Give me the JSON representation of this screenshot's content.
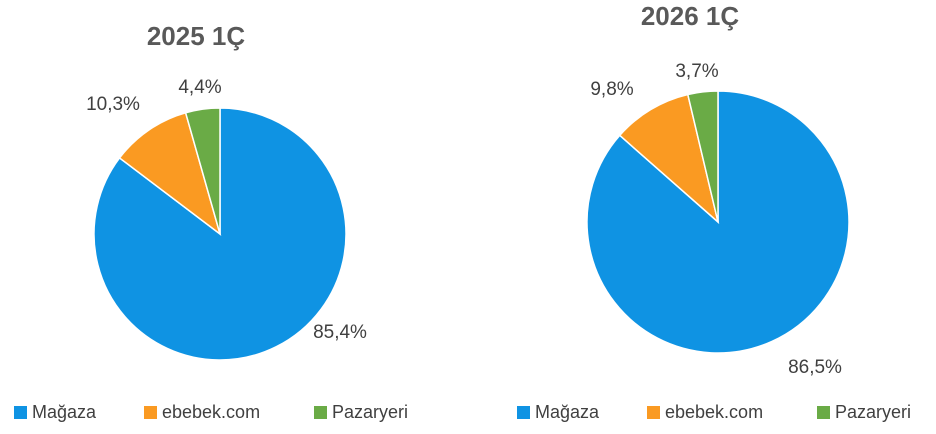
{
  "chart_data": [
    {
      "type": "pie",
      "title": "2025 1Ç",
      "categories": [
        "Mağaza",
        "ebebek.com",
        "Pazaryeri"
      ],
      "values": [
        85.4,
        10.3,
        4.4
      ],
      "value_labels": [
        "85,4%",
        "10,3%",
        "4,4%"
      ],
      "colors": [
        "#0f93e3",
        "#fa9a22",
        "#6aab46"
      ],
      "legend": "bottom"
    },
    {
      "type": "pie",
      "title": "2026 1Ç",
      "categories": [
        "Mağaza",
        "ebebek.com",
        "Pazaryeri"
      ],
      "values": [
        86.5,
        9.8,
        3.7
      ],
      "value_labels": [
        "86,5%",
        "9,8%",
        "3,7%"
      ],
      "colors": [
        "#0f93e3",
        "#fa9a22",
        "#6aab46"
      ],
      "legend": "bottom"
    }
  ]
}
